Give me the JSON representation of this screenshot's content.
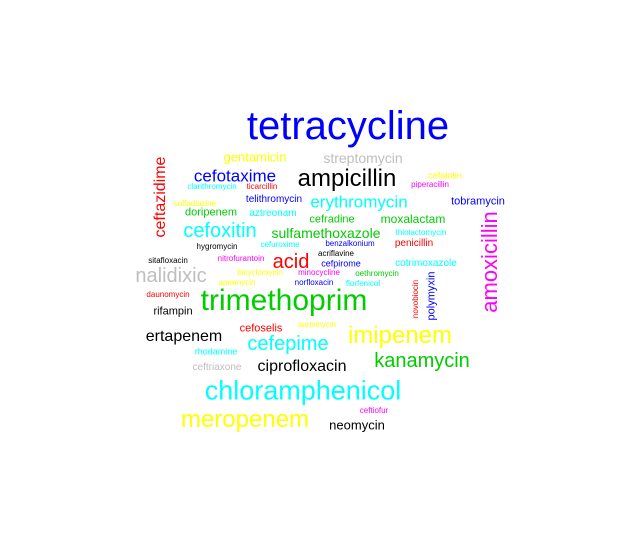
{
  "words": [
    {
      "text": "tetracycline",
      "color": "#0000ff"
    },
    {
      "text": "gentamicin",
      "color": "#ffff00"
    },
    {
      "text": "streptomycin",
      "color": "#bebebe"
    },
    {
      "text": "ceftazidime",
      "color": "#ff0000"
    },
    {
      "text": "cefotaxime",
      "color": "#0000ff"
    },
    {
      "text": "ampicillin",
      "color": "#000000"
    },
    {
      "text": "cefalotin",
      "color": "#ffff00"
    },
    {
      "text": "clarithromycin",
      "color": "#00ffff"
    },
    {
      "text": "ticarcillin",
      "color": "#ff0000"
    },
    {
      "text": "piperacillin",
      "color": "#ff00ff"
    },
    {
      "text": "telithromycin",
      "color": "#0000ff"
    },
    {
      "text": "erythromycin",
      "color": "#00ffff"
    },
    {
      "text": "sulfadiazine",
      "color": "#ffff00"
    },
    {
      "text": "tobramycin",
      "color": "#0000ff"
    },
    {
      "text": "doripenem",
      "color": "#00cd00"
    },
    {
      "text": "aztreonam",
      "color": "#00ffff"
    },
    {
      "text": "cefradine",
      "color": "#00cd00"
    },
    {
      "text": "moxalactam",
      "color": "#00cd00"
    },
    {
      "text": "cefoxitin",
      "color": "#00ffff"
    },
    {
      "text": "sulfamethoxazole",
      "color": "#00cd00"
    },
    {
      "text": "thiolactomycin",
      "color": "#00ffff"
    },
    {
      "text": "hygromycin",
      "color": "#000000"
    },
    {
      "text": "cefuroxime",
      "color": "#00ffff"
    },
    {
      "text": "benzalkonium",
      "color": "#0000ff"
    },
    {
      "text": "penicillin",
      "color": "#ff0000"
    },
    {
      "text": "amoxicillin",
      "color": "#ff00ff"
    },
    {
      "text": "sitafloxacin",
      "color": "#000000"
    },
    {
      "text": "nitrofurantoin",
      "color": "#ff00ff"
    },
    {
      "text": "acid",
      "color": "#ff0000"
    },
    {
      "text": "acriflavine",
      "color": "#000000"
    },
    {
      "text": "cefpirome",
      "color": "#0000ff"
    },
    {
      "text": "cotrimoxazole",
      "color": "#00ffff"
    },
    {
      "text": "nalidixic",
      "color": "#bebebe"
    },
    {
      "text": "bicyclomycin",
      "color": "#ffff00"
    },
    {
      "text": "minocycline",
      "color": "#ff00ff"
    },
    {
      "text": "oethromycin",
      "color": "#00cd00"
    },
    {
      "text": "apramycin",
      "color": "#ffff00"
    },
    {
      "text": "norfloxacin",
      "color": "#0000ff"
    },
    {
      "text": "florfenicol",
      "color": "#00ffff"
    },
    {
      "text": "novobiocin",
      "color": "#ff0000"
    },
    {
      "text": "polymyxin",
      "color": "#0000ff"
    },
    {
      "text": "daunomycin",
      "color": "#ff0000"
    },
    {
      "text": "trimethoprim",
      "color": "#00cd00"
    },
    {
      "text": "rifampin",
      "color": "#000000"
    },
    {
      "text": "ertapenem",
      "color": "#000000"
    },
    {
      "text": "cefoselis",
      "color": "#ff0000"
    },
    {
      "text": "aurismycin",
      "color": "#ffff00"
    },
    {
      "text": "imipenem",
      "color": "#ffff00"
    },
    {
      "text": "cefepime",
      "color": "#00ffff"
    },
    {
      "text": "rhodamine",
      "color": "#00ffff"
    },
    {
      "text": "kanamycin",
      "color": "#00cd00"
    },
    {
      "text": "ceftriaxone",
      "color": "#bebebe"
    },
    {
      "text": "ciprofloxacin",
      "color": "#000000"
    },
    {
      "text": "chloramphenicol",
      "color": "#00ffff"
    },
    {
      "text": "ceftiofur",
      "color": "#ff00ff"
    },
    {
      "text": "meropenem",
      "color": "#ffff00"
    },
    {
      "text": "neomycin",
      "color": "#000000"
    }
  ]
}
